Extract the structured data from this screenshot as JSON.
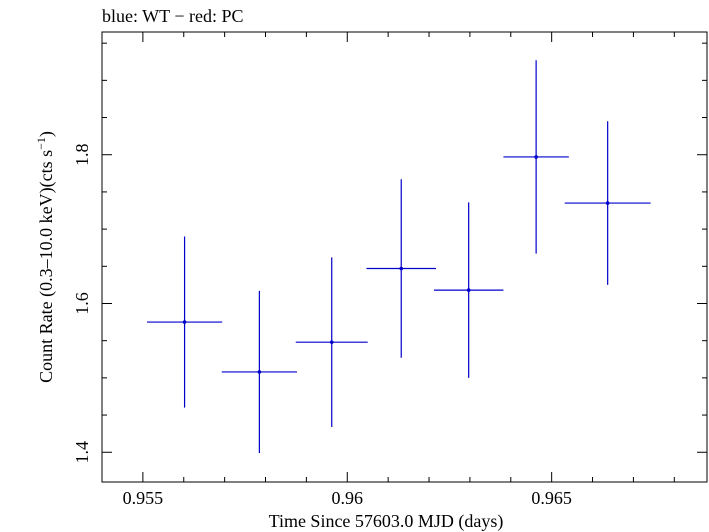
{
  "chart_data": {
    "type": "scatter",
    "title": "blue: WT − red: PC",
    "xlabel": "Time Since 57603.0 MJD (days)",
    "ylabel_main": "Count Rate (0.3–10.0 keV)(cts s",
    "ylabel_sup": "−1",
    "ylabel_close": ")",
    "xlim": [
      0.954,
      0.9688
    ],
    "ylim": [
      1.36,
      1.965
    ],
    "xticks_major": [
      0.955,
      0.96,
      0.965
    ],
    "xtick_labels": [
      "0.955",
      "0.96",
      "0.965"
    ],
    "yticks_major": [
      1.4,
      1.6,
      1.8
    ],
    "ytick_labels": [
      "1.4",
      "1.6",
      "1.8"
    ],
    "xticks_minor_step": 0.001,
    "yticks_minor_step": 0.05,
    "grid": false,
    "legend": "none",
    "series": [
      {
        "color": "#0000cc",
        "points": [
          {
            "x": 0.95602,
            "y": 1.575,
            "xerr": 0.00092,
            "yerr": 0.115
          },
          {
            "x": 0.95785,
            "y": 1.508,
            "xerr": 0.00092,
            "yerr": 0.109
          },
          {
            "x": 0.95962,
            "y": 1.548,
            "xerr": 0.00088,
            "yerr": 0.114
          },
          {
            "x": 0.96132,
            "y": 1.647,
            "xerr": 0.00085,
            "yerr": 0.12
          },
          {
            "x": 0.96297,
            "y": 1.618,
            "xerr": 0.00085,
            "yerr": 0.118
          },
          {
            "x": 0.96462,
            "y": 1.797,
            "xerr": 0.0008,
            "yerr": 0.13
          },
          {
            "x": 0.96637,
            "y": 1.735,
            "xerr": 0.00105,
            "yerr": 0.11
          }
        ]
      }
    ]
  }
}
